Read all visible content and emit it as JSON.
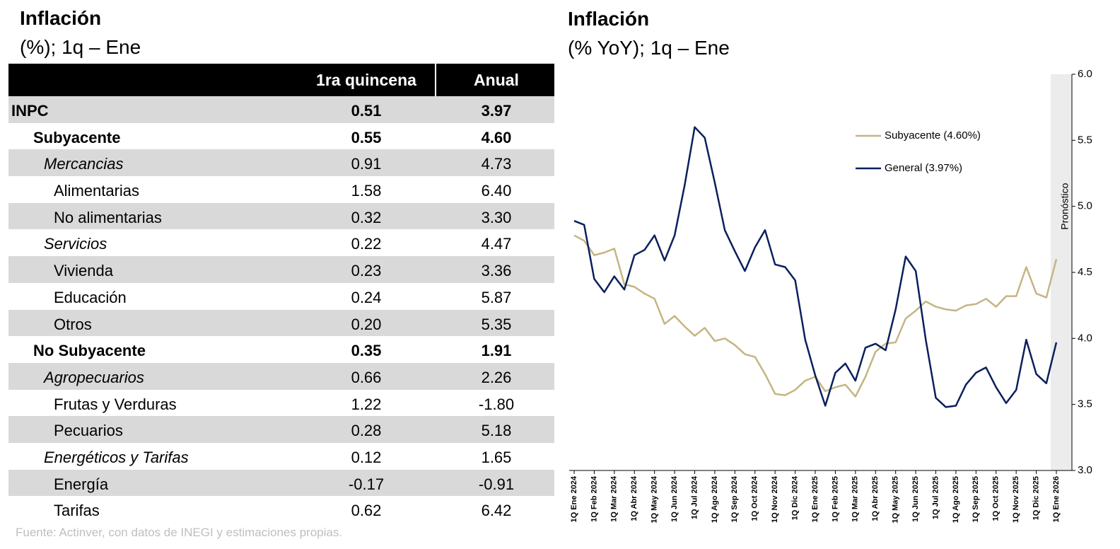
{
  "table": {
    "title": "Inflación",
    "subtitle": "(%); 1q – Ene",
    "columns": [
      "1ra quincena",
      "Anual"
    ],
    "rows": [
      [
        "INPC",
        "0.51",
        "3.97"
      ],
      [
        "Subyacente",
        "0.55",
        "4.60"
      ],
      [
        "Mercancias",
        "0.91",
        "4.73"
      ],
      [
        "Alimentarias",
        "1.58",
        "6.40"
      ],
      [
        "No alimentarias",
        "0.32",
        "3.30"
      ],
      [
        "Servicios",
        "0.22",
        "4.47"
      ],
      [
        "Vivienda",
        "0.23",
        "3.36"
      ],
      [
        "Educación",
        "0.24",
        "5.87"
      ],
      [
        "Otros",
        "0.20",
        "5.35"
      ],
      [
        "No Subyacente",
        "0.35",
        "1.91"
      ],
      [
        "Agropecuarios",
        "0.66",
        "2.26"
      ],
      [
        "Frutas y Verduras",
        "1.22",
        "-1.80"
      ],
      [
        "Pecuarios",
        "0.28",
        "5.18"
      ],
      [
        "Energéticos y Tarifas",
        "0.12",
        "1.65"
      ],
      [
        "Energía",
        "-0.17",
        "-0.91"
      ],
      [
        "Tarifas",
        "0.62",
        "6.42"
      ]
    ],
    "source": "Fuente: Actinver, con datos de INEGI y estimaciones propias."
  },
  "chart_data": {
    "type": "line",
    "title": "Inflación",
    "subtitle": "(% YoY); 1q – Ene",
    "categories": [
      "1Q Ene 2024",
      null,
      "1Q Feb 2024",
      null,
      "1Q Mar 2024",
      null,
      "1Q Abr 2024",
      null,
      "1Q May 2024",
      null,
      "1Q Jun 2024",
      null,
      "1Q Jul 2024",
      null,
      "1Q Ago 2024",
      null,
      "1Q Sep 2024",
      null,
      "1Q Oct 2024",
      null,
      "1Q Nov 2024",
      null,
      "1Q Dic 2024",
      null,
      "1Q Ene 2025",
      null,
      "1Q Feb 2025",
      null,
      "1Q Mar 2025",
      null,
      "1Q Abr 2025",
      null,
      "1Q May 2025",
      null,
      "1Q Jun 2025",
      null,
      "1Q Jul 2025",
      null,
      "1Q Ago 2025",
      null,
      "1Q Sep 2025",
      null,
      "1Q Oct 2025",
      null,
      "1Q Nov 2025",
      null,
      "1Q Dic 2025",
      null,
      "1Q Ene 2026"
    ],
    "series": [
      {
        "name": "Subyacente (4.60%)",
        "color": "#c4b583",
        "values": [
          4.78,
          4.74,
          4.63,
          4.65,
          4.68,
          4.41,
          4.39,
          4.34,
          4.3,
          4.11,
          4.17,
          4.09,
          4.02,
          4.08,
          3.98,
          4.0,
          3.95,
          3.88,
          3.86,
          3.73,
          3.58,
          3.57,
          3.61,
          3.68,
          3.71,
          3.6,
          3.63,
          3.65,
          3.56,
          3.71,
          3.9,
          3.96,
          3.97,
          4.15,
          4.21,
          4.28,
          4.24,
          4.22,
          4.21,
          4.25,
          4.26,
          4.3,
          4.24,
          4.32,
          4.32,
          4.54,
          4.34,
          4.31,
          4.6
        ]
      },
      {
        "name": "General (3.97%)",
        "color": "#0b1f5c",
        "values": [
          4.89,
          4.86,
          4.45,
          4.35,
          4.47,
          4.37,
          4.63,
          4.67,
          4.78,
          4.59,
          4.78,
          5.16,
          5.6,
          5.52,
          5.18,
          4.82,
          4.66,
          4.51,
          4.69,
          4.82,
          4.56,
          4.54,
          4.44,
          3.99,
          3.72,
          3.49,
          3.74,
          3.81,
          3.68,
          3.93,
          3.96,
          3.91,
          4.22,
          4.62,
          4.51,
          3.99,
          3.55,
          3.48,
          3.49,
          3.65,
          3.74,
          3.78,
          3.63,
          3.51,
          3.61,
          3.99,
          3.73,
          3.66,
          3.97
        ]
      }
    ],
    "ylim": [
      3,
      6
    ],
    "yticks": [
      {
        "value": 3,
        "label": "3.0"
      },
      3.5,
      {
        "value": 4,
        "label": "4.0"
      },
      4.5,
      {
        "value": 5,
        "label": "5.0"
      },
      5.5,
      {
        "value": 6,
        "label": "6.0"
      }
    ],
    "annotation": "Pronóstico",
    "legend": "upper-right"
  }
}
